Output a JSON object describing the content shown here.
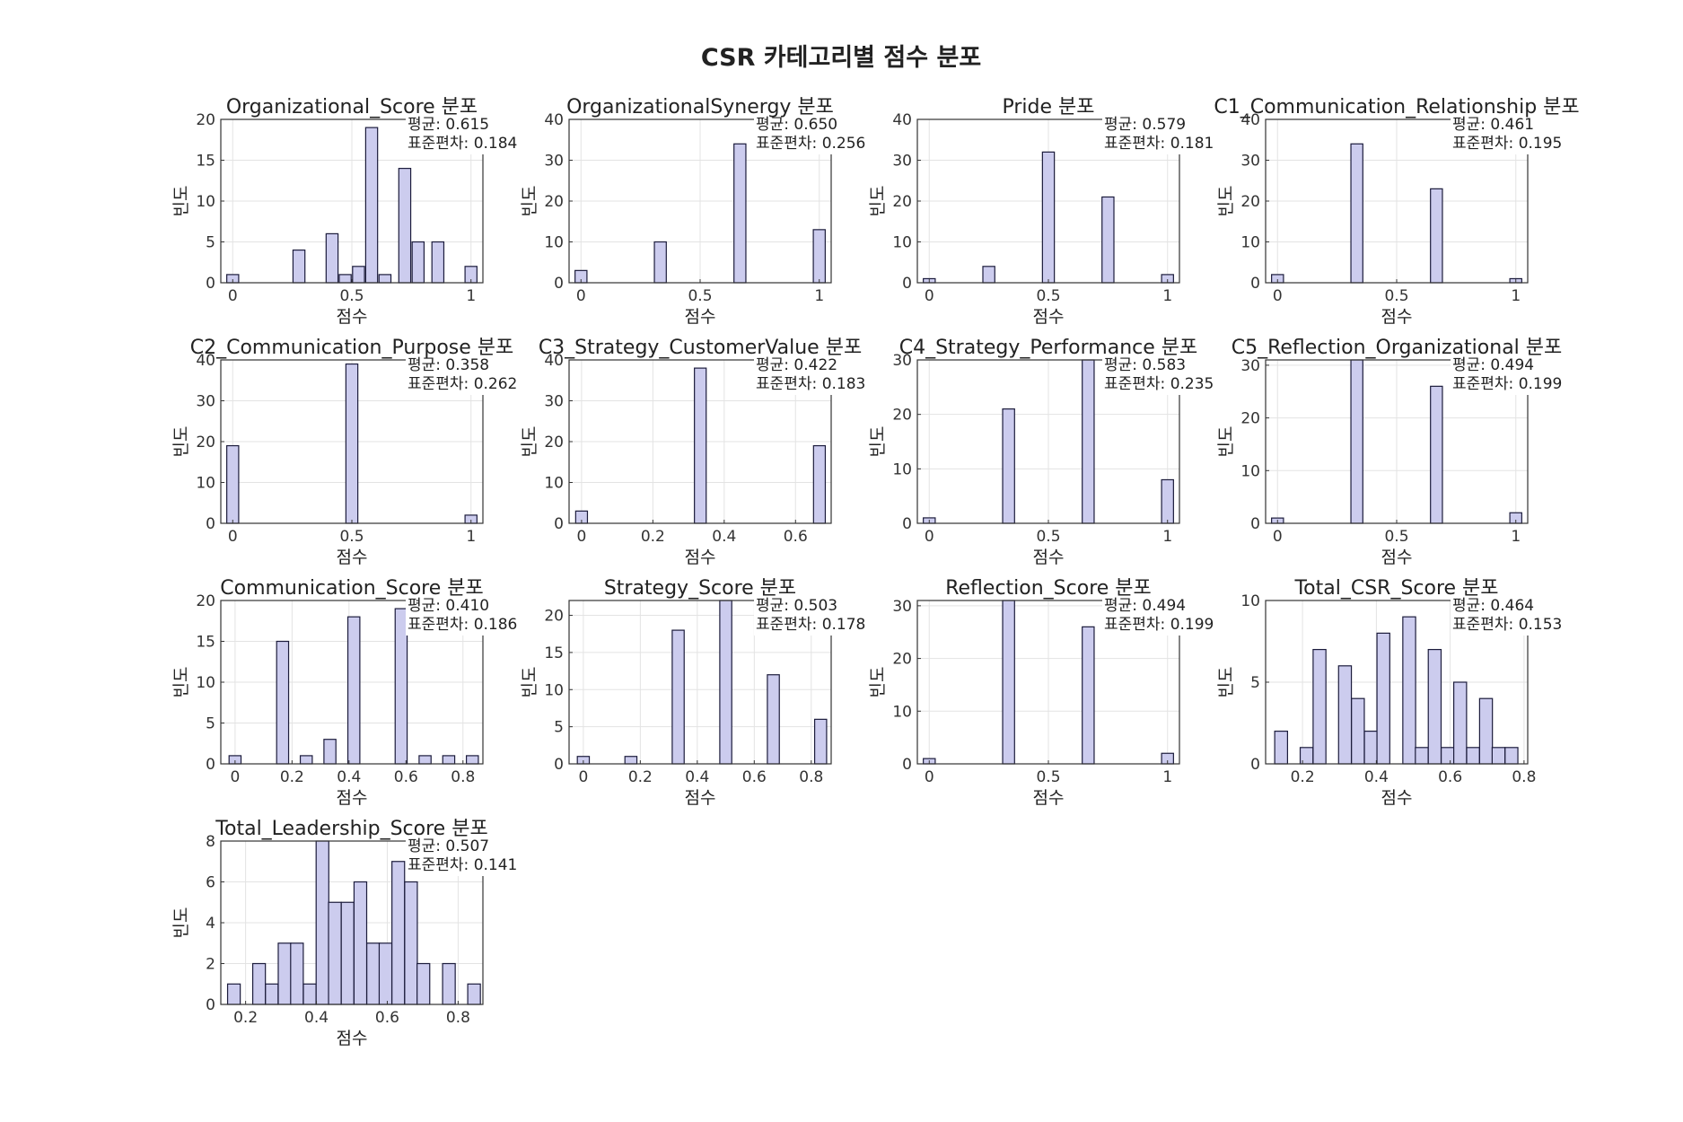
{
  "chart_data": {
    "title": "CSR 카테고리별 점수 분포",
    "stats_labels": {
      "mean": "평균",
      "std": "표준편차"
    },
    "panels": [
      {
        "type": "bar",
        "title": "Organizational_Score 분포",
        "xlabel": "점수",
        "ylabel": "빈도",
        "mean": "0.615",
        "std": "0.184",
        "xlim": [
          -0.05,
          1.05
        ],
        "ylim": [
          0,
          20
        ],
        "xticks": [
          {
            "v": 0,
            "t": "0"
          },
          {
            "v": 0.5,
            "t": "0.5"
          },
          {
            "v": 1,
            "t": "1"
          }
        ],
        "yticks": [
          0,
          5,
          10,
          15,
          20
        ],
        "bar_width": 0.05,
        "bars": [
          {
            "x": 0,
            "y": 1
          },
          {
            "x": 0.278,
            "y": 4
          },
          {
            "x": 0.417,
            "y": 6
          },
          {
            "x": 0.472,
            "y": 1
          },
          {
            "x": 0.528,
            "y": 2
          },
          {
            "x": 0.583,
            "y": 19
          },
          {
            "x": 0.639,
            "y": 1
          },
          {
            "x": 0.722,
            "y": 14
          },
          {
            "x": 0.778,
            "y": 5
          },
          {
            "x": 0.861,
            "y": 5
          },
          {
            "x": 1,
            "y": 2
          }
        ]
      },
      {
        "type": "bar",
        "title": "OrganizationalSynergy 분포",
        "xlabel": "점수",
        "ylabel": "빈도",
        "mean": "0.650",
        "std": "0.256",
        "xlim": [
          -0.05,
          1.05
        ],
        "ylim": [
          0,
          40
        ],
        "xticks": [
          {
            "v": 0,
            "t": "0"
          },
          {
            "v": 0.5,
            "t": "0.5"
          },
          {
            "v": 1,
            "t": "1"
          }
        ],
        "yticks": [
          0,
          10,
          20,
          30,
          40
        ],
        "bar_width": 0.05,
        "bars": [
          {
            "x": 0,
            "y": 3
          },
          {
            "x": 0.333,
            "y": 10
          },
          {
            "x": 0.667,
            "y": 34
          },
          {
            "x": 1,
            "y": 13
          }
        ]
      },
      {
        "type": "bar",
        "title": "Pride 분포",
        "xlabel": "점수",
        "ylabel": "빈도",
        "mean": "0.579",
        "std": "0.181",
        "xlim": [
          -0.05,
          1.05
        ],
        "ylim": [
          0,
          40
        ],
        "xticks": [
          {
            "v": 0,
            "t": "0"
          },
          {
            "v": 0.5,
            "t": "0.5"
          },
          {
            "v": 1,
            "t": "1"
          }
        ],
        "yticks": [
          0,
          10,
          20,
          30,
          40
        ],
        "bar_width": 0.05,
        "bars": [
          {
            "x": 0,
            "y": 1
          },
          {
            "x": 0.25,
            "y": 4
          },
          {
            "x": 0.5,
            "y": 32
          },
          {
            "x": 0.75,
            "y": 21
          },
          {
            "x": 1,
            "y": 2
          }
        ]
      },
      {
        "type": "bar",
        "title": "C1_Communication_Relationship 분포",
        "xlabel": "점수",
        "ylabel": "빈도",
        "mean": "0.461",
        "std": "0.195",
        "xlim": [
          -0.05,
          1.05
        ],
        "ylim": [
          0,
          40
        ],
        "xticks": [
          {
            "v": 0,
            "t": "0"
          },
          {
            "v": 0.5,
            "t": "0.5"
          },
          {
            "v": 1,
            "t": "1"
          }
        ],
        "yticks": [
          0,
          10,
          20,
          30,
          40
        ],
        "bar_width": 0.05,
        "bars": [
          {
            "x": 0,
            "y": 2
          },
          {
            "x": 0.333,
            "y": 34
          },
          {
            "x": 0.667,
            "y": 23
          },
          {
            "x": 1,
            "y": 1
          }
        ]
      },
      {
        "type": "bar",
        "title": "C2_Communication_Purpose 분포",
        "xlabel": "점수",
        "ylabel": "빈도",
        "mean": "0.358",
        "std": "0.262",
        "xlim": [
          -0.05,
          1.05
        ],
        "ylim": [
          0,
          40
        ],
        "xticks": [
          {
            "v": 0,
            "t": "0"
          },
          {
            "v": 0.5,
            "t": "0.5"
          },
          {
            "v": 1,
            "t": "1"
          }
        ],
        "yticks": [
          0,
          10,
          20,
          30,
          40
        ],
        "bar_width": 0.05,
        "bars": [
          {
            "x": 0,
            "y": 19
          },
          {
            "x": 0.5,
            "y": 39
          },
          {
            "x": 1,
            "y": 2
          }
        ]
      },
      {
        "type": "bar",
        "title": "C3_Strategy_CustomerValue 분포",
        "xlabel": "점수",
        "ylabel": "빈도",
        "mean": "0.422",
        "std": "0.183",
        "xlim": [
          -0.035,
          0.7
        ],
        "ylim": [
          0,
          40
        ],
        "xticks": [
          {
            "v": 0,
            "t": "0"
          },
          {
            "v": 0.2,
            "t": "0.2"
          },
          {
            "v": 0.4,
            "t": "0.4"
          },
          {
            "v": 0.6,
            "t": "0.6"
          }
        ],
        "yticks": [
          0,
          10,
          20,
          30,
          40
        ],
        "bar_width": 0.033,
        "bars": [
          {
            "x": 0,
            "y": 3
          },
          {
            "x": 0.333,
            "y": 38
          },
          {
            "x": 0.667,
            "y": 19
          }
        ]
      },
      {
        "type": "bar",
        "title": "C4_Strategy_Performance 분포",
        "xlabel": "점수",
        "ylabel": "빈도",
        "mean": "0.583",
        "std": "0.235",
        "xlim": [
          -0.05,
          1.05
        ],
        "ylim": [
          0,
          30
        ],
        "xticks": [
          {
            "v": 0,
            "t": "0"
          },
          {
            "v": 0.5,
            "t": "0.5"
          },
          {
            "v": 1,
            "t": "1"
          }
        ],
        "yticks": [
          0,
          10,
          20,
          30
        ],
        "bar_width": 0.05,
        "bars": [
          {
            "x": 0,
            "y": 1
          },
          {
            "x": 0.333,
            "y": 21
          },
          {
            "x": 0.667,
            "y": 30
          },
          {
            "x": 1,
            "y": 8
          }
        ]
      },
      {
        "type": "bar",
        "title": "C5_Reflection_Organizational 분포",
        "xlabel": "점수",
        "ylabel": "빈도",
        "mean": "0.494",
        "std": "0.199",
        "xlim": [
          -0.05,
          1.05
        ],
        "ylim": [
          0,
          31
        ],
        "xticks": [
          {
            "v": 0,
            "t": "0"
          },
          {
            "v": 0.5,
            "t": "0.5"
          },
          {
            "v": 1,
            "t": "1"
          }
        ],
        "yticks": [
          0,
          10,
          20,
          30
        ],
        "bar_width": 0.05,
        "bars": [
          {
            "x": 0,
            "y": 1
          },
          {
            "x": 0.333,
            "y": 31
          },
          {
            "x": 0.667,
            "y": 26
          },
          {
            "x": 1,
            "y": 2
          }
        ]
      },
      {
        "type": "bar",
        "title": "Communication_Score 분포",
        "xlabel": "점수",
        "ylabel": "빈도",
        "mean": "0.410",
        "std": "0.186",
        "xlim": [
          -0.05,
          0.87
        ],
        "ylim": [
          0,
          20
        ],
        "xticks": [
          {
            "v": 0,
            "t": "0"
          },
          {
            "v": 0.2,
            "t": "0.2"
          },
          {
            "v": 0.4,
            "t": "0.4"
          },
          {
            "v": 0.6,
            "t": "0.6"
          },
          {
            "v": 0.8,
            "t": "0.8"
          }
        ],
        "yticks": [
          0,
          5,
          10,
          15,
          20
        ],
        "bar_width": 0.042,
        "bars": [
          {
            "x": 0,
            "y": 1
          },
          {
            "x": 0.167,
            "y": 15
          },
          {
            "x": 0.25,
            "y": 1
          },
          {
            "x": 0.333,
            "y": 3
          },
          {
            "x": 0.417,
            "y": 18
          },
          {
            "x": 0.583,
            "y": 19
          },
          {
            "x": 0.667,
            "y": 1
          },
          {
            "x": 0.75,
            "y": 1
          },
          {
            "x": 0.833,
            "y": 1
          }
        ]
      },
      {
        "type": "bar",
        "title": "Strategy_Score 분포",
        "xlabel": "점수",
        "ylabel": "빈도",
        "mean": "0.503",
        "std": "0.178",
        "xlim": [
          -0.05,
          0.87
        ],
        "ylim": [
          0,
          22
        ],
        "xticks": [
          {
            "v": 0,
            "t": "0"
          },
          {
            "v": 0.2,
            "t": "0.2"
          },
          {
            "v": 0.4,
            "t": "0.4"
          },
          {
            "v": 0.6,
            "t": "0.6"
          },
          {
            "v": 0.8,
            "t": "0.8"
          }
        ],
        "yticks": [
          0,
          5,
          10,
          15,
          20
        ],
        "bar_width": 0.042,
        "bars": [
          {
            "x": 0,
            "y": 1
          },
          {
            "x": 0.167,
            "y": 1
          },
          {
            "x": 0.333,
            "y": 18
          },
          {
            "x": 0.5,
            "y": 22
          },
          {
            "x": 0.667,
            "y": 12
          },
          {
            "x": 0.833,
            "y": 6
          }
        ]
      },
      {
        "type": "bar",
        "title": "Reflection_Score 분포",
        "xlabel": "점수",
        "ylabel": "빈도",
        "mean": "0.494",
        "std": "0.199",
        "xlim": [
          -0.05,
          1.05
        ],
        "ylim": [
          0,
          31
        ],
        "xticks": [
          {
            "v": 0,
            "t": "0"
          },
          {
            "v": 0.5,
            "t": "0.5"
          },
          {
            "v": 1,
            "t": "1"
          }
        ],
        "yticks": [
          0,
          10,
          20,
          30
        ],
        "bar_width": 0.05,
        "bars": [
          {
            "x": 0,
            "y": 1
          },
          {
            "x": 0.333,
            "y": 31
          },
          {
            "x": 0.667,
            "y": 26
          },
          {
            "x": 1,
            "y": 2
          }
        ]
      },
      {
        "type": "bar",
        "title": "Total_CSR_Score 분포",
        "xlabel": "점수",
        "ylabel": "빈도",
        "mean": "0.464",
        "std": "0.153",
        "xlim": [
          0.1,
          0.81
        ],
        "ylim": [
          0,
          10
        ],
        "xticks": [
          {
            "v": 0.2,
            "t": "0.2"
          },
          {
            "v": 0.4,
            "t": "0.4"
          },
          {
            "v": 0.6,
            "t": "0.6"
          },
          {
            "v": 0.8,
            "t": "0.8"
          }
        ],
        "yticks": [
          0,
          5,
          10
        ],
        "bar_width": 0.0347,
        "bars": [
          {
            "x": 0.142,
            "y": 2
          },
          {
            "x": 0.211,
            "y": 1
          },
          {
            "x": 0.246,
            "y": 7
          },
          {
            "x": 0.315,
            "y": 6
          },
          {
            "x": 0.35,
            "y": 4
          },
          {
            "x": 0.385,
            "y": 2
          },
          {
            "x": 0.419,
            "y": 8
          },
          {
            "x": 0.489,
            "y": 9
          },
          {
            "x": 0.523,
            "y": 1
          },
          {
            "x": 0.558,
            "y": 7
          },
          {
            "x": 0.593,
            "y": 1
          },
          {
            "x": 0.627,
            "y": 5
          },
          {
            "x": 0.662,
            "y": 1
          },
          {
            "x": 0.697,
            "y": 4
          },
          {
            "x": 0.731,
            "y": 1
          },
          {
            "x": 0.766,
            "y": 1
          }
        ]
      },
      {
        "type": "bar",
        "title": "Total_Leadership_Score 분포",
        "xlabel": "점수",
        "ylabel": "빈도",
        "mean": "0.507",
        "std": "0.141",
        "xlim": [
          0.13,
          0.87
        ],
        "ylim": [
          0,
          8
        ],
        "xticks": [
          {
            "v": 0.2,
            "t": "0.2"
          },
          {
            "v": 0.4,
            "t": "0.4"
          },
          {
            "v": 0.6,
            "t": "0.6"
          },
          {
            "v": 0.8,
            "t": "0.8"
          }
        ],
        "yticks": [
          0,
          2,
          4,
          6,
          8
        ],
        "bar_width": 0.0357,
        "bars": [
          {
            "x": 0.167,
            "y": 1
          },
          {
            "x": 0.238,
            "y": 2
          },
          {
            "x": 0.274,
            "y": 1
          },
          {
            "x": 0.31,
            "y": 3
          },
          {
            "x": 0.345,
            "y": 3
          },
          {
            "x": 0.381,
            "y": 1
          },
          {
            "x": 0.417,
            "y": 8
          },
          {
            "x": 0.452,
            "y": 5
          },
          {
            "x": 0.488,
            "y": 5
          },
          {
            "x": 0.524,
            "y": 6
          },
          {
            "x": 0.56,
            "y": 3
          },
          {
            "x": 0.595,
            "y": 3
          },
          {
            "x": 0.631,
            "y": 7
          },
          {
            "x": 0.667,
            "y": 6
          },
          {
            "x": 0.702,
            "y": 2
          },
          {
            "x": 0.774,
            "y": 2
          },
          {
            "x": 0.845,
            "y": 1
          }
        ]
      }
    ]
  }
}
